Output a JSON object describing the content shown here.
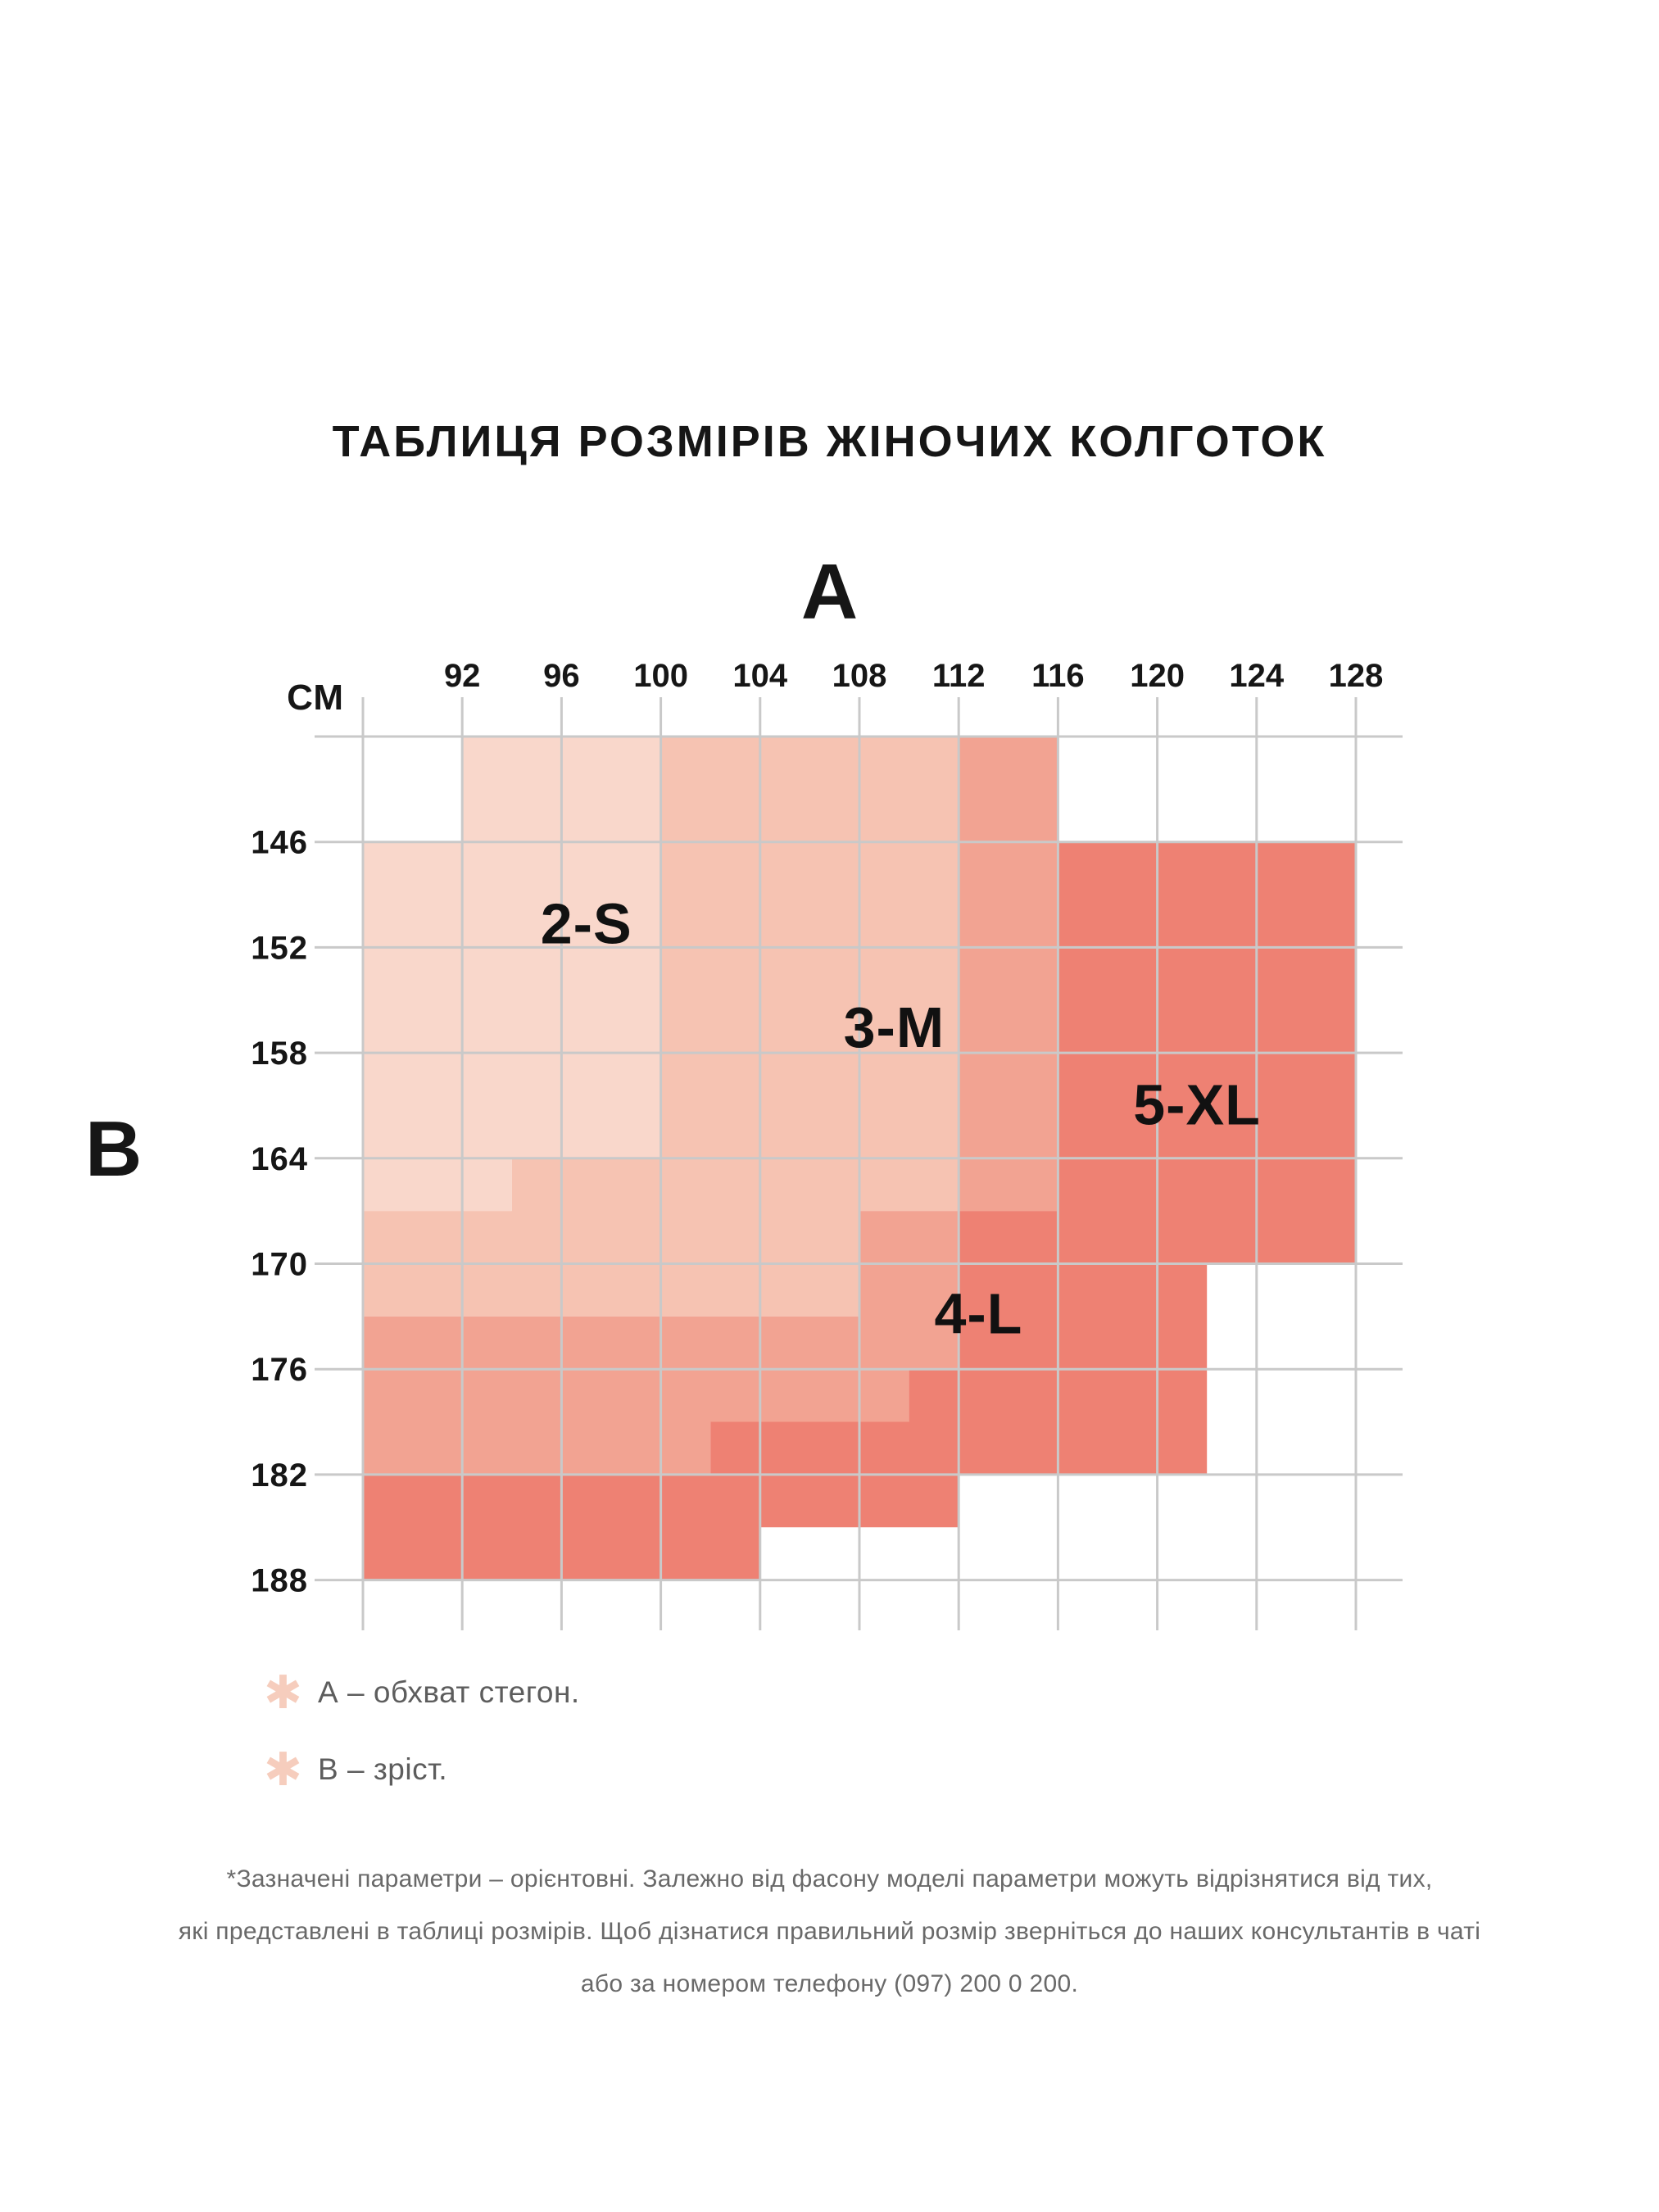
{
  "title": "ТАБЛИЦЯ РОЗМІРІВ ЖІНОЧИХ КОЛГОТОК",
  "axis": {
    "a_letter": "А",
    "b_letter": "В",
    "unit_label": "СМ",
    "a_ticks": [
      92,
      96,
      100,
      104,
      108,
      112,
      116,
      120,
      124,
      128
    ],
    "b_ticks": [
      146,
      152,
      158,
      164,
      170,
      176,
      182,
      188
    ]
  },
  "chart_data": {
    "type": "heatmap",
    "title": "ТАБЛИЦЯ РОЗМІРІВ ЖІНОЧИХ КОЛГОТОК",
    "xlabel": "А (обхват стегон, см)",
    "ylabel": "В (зріст, см)",
    "axes": {
      "a_min": 88,
      "a_max": 128,
      "a_step": 4,
      "b_min": 140,
      "b_max": 188,
      "b_step": 6
    },
    "grid": true,
    "sizes": [
      {
        "label": "2-S",
        "color": "#f9d7cb",
        "label_pos": [
          97.0,
          150.6
        ],
        "polygons": [
          [
            [
              92,
              140
            ],
            [
              100,
              140
            ],
            [
              100,
              164
            ],
            [
              94,
              164
            ],
            [
              94,
              167
            ],
            [
              88,
              167
            ],
            [
              88,
              146
            ],
            [
              92,
              146
            ]
          ]
        ]
      },
      {
        "label": "3-M",
        "color": "#f6c3b2",
        "label_pos": [
          109.4,
          156.5
        ],
        "polygons": [
          [
            [
              100,
              140
            ],
            [
              112,
              140
            ],
            [
              112,
              167
            ],
            [
              108,
              167
            ],
            [
              108,
              173
            ],
            [
              88,
              173
            ],
            [
              88,
              167
            ],
            [
              94,
              167
            ],
            [
              94,
              164
            ],
            [
              100,
              164
            ]
          ]
        ]
      },
      {
        "label": "4-L",
        "color": "#f2a392",
        "label_pos": [
          112.8,
          172.8
        ],
        "polygons": [
          [
            [
              112,
              140
            ],
            [
              116,
              140
            ],
            [
              116,
              167
            ],
            [
              112,
              167
            ]
          ],
          [
            [
              108,
              167
            ],
            [
              112,
              167
            ],
            [
              112,
              176
            ],
            [
              110,
              176
            ],
            [
              110,
              179
            ],
            [
              102,
              179
            ],
            [
              102,
              182
            ],
            [
              88,
              182
            ],
            [
              88,
              173
            ],
            [
              108,
              173
            ]
          ]
        ]
      },
      {
        "label": "5-XL",
        "color": "#ee8173",
        "label_pos": [
          121.6,
          160.9
        ],
        "polygons": [
          [
            [
              116,
              146
            ],
            [
              128,
              146
            ],
            [
              128,
              170
            ],
            [
              122,
              170
            ],
            [
              122,
              182
            ],
            [
              112,
              182
            ],
            [
              112,
              185
            ],
            [
              104,
              185
            ],
            [
              104,
              188
            ],
            [
              88,
              188
            ],
            [
              88,
              182
            ],
            [
              102,
              182
            ],
            [
              102,
              179
            ],
            [
              110,
              179
            ],
            [
              110,
              176
            ],
            [
              112,
              176
            ],
            [
              112,
              167
            ],
            [
              116,
              167
            ]
          ]
        ]
      }
    ]
  },
  "legend": [
    {
      "marker_icon": "asterisk",
      "text": "А – обхват стегон."
    },
    {
      "marker_icon": "asterisk",
      "text": "В – зріст."
    }
  ],
  "footnote": [
    "*Зазначені параметри – орієнтовні. Залежно від фасону моделі параметри можуть відрізнятися від тих,",
    "які представлені в таблиці розмірів. Щоб дізнатися правильний розмір зверніться до наших консультантів в чаті",
    "або за номером телефону (097) 200 0 200."
  ],
  "colors": {
    "grid_line": "#c9c9c9",
    "tick_label": "#161616",
    "size_label": "#111111",
    "legend_marker": "#f6cdbd"
  }
}
